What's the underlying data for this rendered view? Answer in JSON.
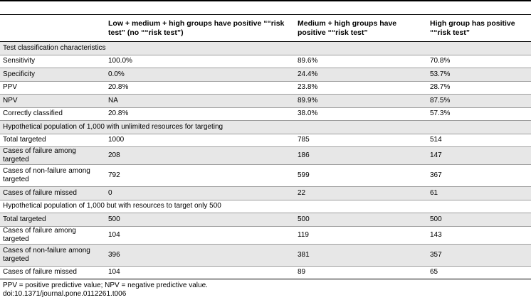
{
  "header": {
    "col1": "",
    "col2": "Low + medium + high groups have positive ““risk test” (no ““risk test”)",
    "col3": "Medium + high groups have positive ““risk test”",
    "col4": "High group has positive ““risk test”"
  },
  "rows": [
    {
      "section": "Test classification characteristics"
    },
    {
      "label": "Sensitivity",
      "v1": "100.0%",
      "v2": "89.6%",
      "v3": "70.8%"
    },
    {
      "label": "Specificity",
      "v1": "0.0%",
      "v2": "24.4%",
      "v3": "53.7%"
    },
    {
      "label": "PPV",
      "v1": "20.8%",
      "v2": "23.8%",
      "v3": "28.7%"
    },
    {
      "label": "NPV",
      "v1": "NA",
      "v2": "89.9%",
      "v3": "87.5%"
    },
    {
      "label": "Correctly classified",
      "v1": "20.8%",
      "v2": "38.0%",
      "v3": "57.3%"
    },
    {
      "section": "Hypothetical population of 1,000 with unlimited resources for targeting"
    },
    {
      "label": "Total targeted",
      "v1": "1000",
      "v2": "785",
      "v3": "514"
    },
    {
      "label": "Cases of failure among targeted",
      "v1": "208",
      "v2": "186",
      "v3": "147"
    },
    {
      "label": "Cases of non-failure among targeted",
      "v1": "792",
      "v2": "599",
      "v3": "367"
    },
    {
      "label": "Cases of failure missed",
      "v1": "0",
      "v2": "22",
      "v3": "61"
    },
    {
      "section": "Hypothetical population of 1,000 but with resources to target only 500"
    },
    {
      "label": "Total targeted",
      "v1": "500",
      "v2": "500",
      "v3": "500"
    },
    {
      "label": "Cases of failure among targeted",
      "v1": "104",
      "v2": "119",
      "v3": "143"
    },
    {
      "label": "Cases of non-failure among targeted",
      "v1": "396",
      "v2": "381",
      "v3": "357"
    },
    {
      "label": "Cases of failure missed",
      "v1": "104",
      "v2": "89",
      "v3": "65"
    }
  ],
  "footnote": {
    "line1": "PPV = positive predictive value; NPV = negative predictive value.",
    "line2": "doi:10.1371/journal.pone.0112261.t006"
  }
}
